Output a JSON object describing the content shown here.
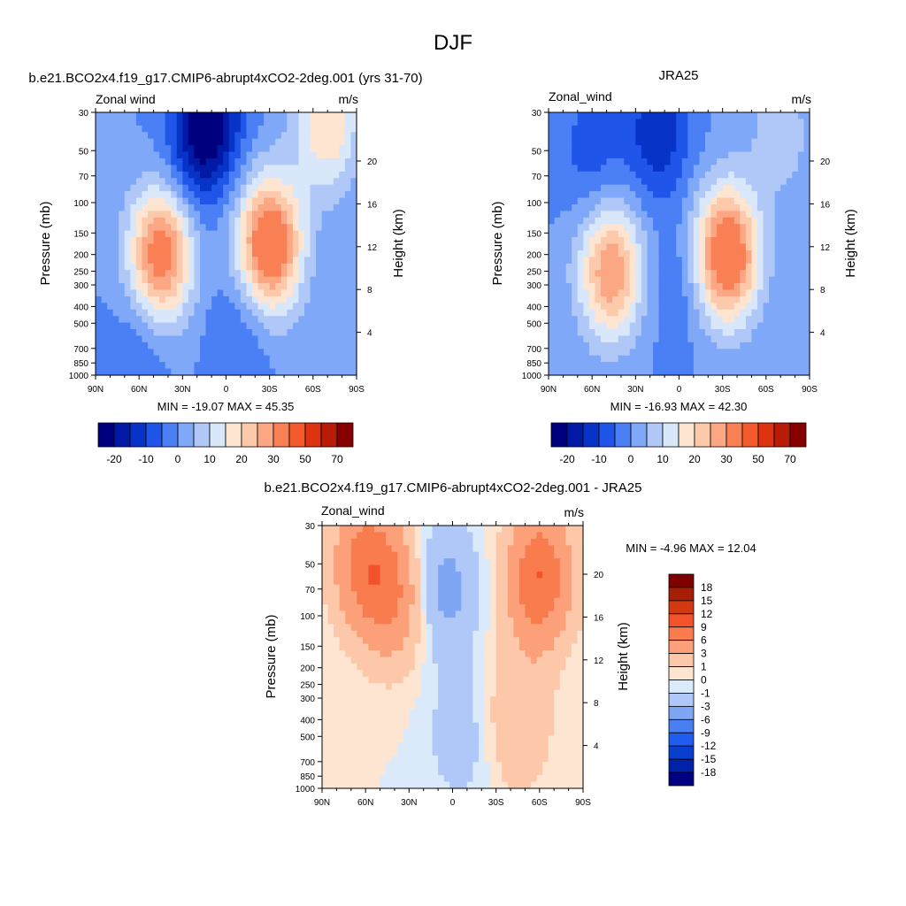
{
  "figure_title": "DJF",
  "panels": [
    {
      "title": "b.e21.BCO2x4.f19_g17.CMIP6-abrupt4xCO2-2deg.001 (yrs 31-70)",
      "left_label": "Zonal wind",
      "units_label": "m/s",
      "ylabel": "Pressure (mb)",
      "ylabel_right": "Height (km)",
      "stats": "MIN = -19.07  MAX =  45.35"
    },
    {
      "title": "JRA25",
      "left_label": "Zonal_wind",
      "units_label": "m/s",
      "ylabel": "Pressure (mb)",
      "ylabel_right": "Height (km)",
      "stats": "MIN = -16.93  MAX =  42.30"
    },
    {
      "title": "b.e21.BCO2x4.f19_g17.CMIP6-abrupt4xCO2-2deg.001 - JRA25",
      "left_label": "Zonal_wind",
      "units_label": "m/s",
      "ylabel": "Pressure (mb)",
      "ylabel_right": "Height (km)",
      "stats": "MIN =  -4.96  MAX =  12.04"
    }
  ],
  "chart_data": [
    {
      "type": "heatmap",
      "subtype": "filled-contour",
      "variable": "Zonal wind",
      "units": "m/s",
      "x_ticks": [
        "90N",
        "60N",
        "30N",
        "0",
        "30S",
        "60S",
        "90S"
      ],
      "y_ticks": [
        30,
        50,
        70,
        100,
        150,
        200,
        250,
        300,
        400,
        500,
        700,
        850,
        1000
      ],
      "y_scale": "log",
      "ylim": [
        1000,
        30
      ],
      "y2_ticks": [
        20,
        16,
        12,
        8,
        4
      ],
      "min": -19.07,
      "max": 45.35,
      "contour_levels": [
        -20,
        -15,
        -10,
        -5,
        0,
        5,
        10,
        15,
        20,
        25,
        30,
        40,
        50,
        60,
        70
      ],
      "colorbar_labels": [
        "-20",
        "-10",
        "0",
        "10",
        "20",
        "30",
        "50",
        "70"
      ],
      "features": [
        {
          "lat": -30,
          "p": 175,
          "u": 40
        },
        {
          "lat": 45,
          "p": 200,
          "u": 35
        },
        {
          "lat": -70,
          "p": 35,
          "u": 20
        },
        {
          "lat": 10,
          "p": 30,
          "u": -18
        },
        {
          "lat": 20,
          "p": 50,
          "u": -12
        },
        {
          "lat": -10,
          "p": 500,
          "u": -6
        },
        {
          "lat": 60,
          "p": 700,
          "u": -5
        }
      ]
    },
    {
      "type": "heatmap",
      "subtype": "filled-contour",
      "variable": "Zonal_wind",
      "units": "m/s",
      "x_ticks": [
        "90N",
        "60N",
        "30N",
        "0",
        "30S",
        "60S",
        "90S"
      ],
      "y_ticks": [
        30,
        50,
        70,
        100,
        150,
        200,
        250,
        300,
        400,
        500,
        700,
        850,
        1000
      ],
      "y_scale": "log",
      "ylim": [
        1000,
        30
      ],
      "y2_ticks": [
        20,
        16,
        12,
        8,
        4
      ],
      "min": -16.93,
      "max": 42.3,
      "contour_levels": [
        -20,
        -15,
        -10,
        -5,
        0,
        5,
        10,
        15,
        20,
        25,
        30,
        40,
        50,
        60,
        70
      ],
      "colorbar_labels": [
        "-20",
        "-10",
        "0",
        "10",
        "20",
        "30",
        "50",
        "70"
      ],
      "features": [
        {
          "lat": -33,
          "p": 200,
          "u": 40
        },
        {
          "lat": 47,
          "p": 250,
          "u": 30
        },
        {
          "lat": -70,
          "p": 40,
          "u": 8
        },
        {
          "lat": 15,
          "p": 40,
          "u": -14
        },
        {
          "lat": 60,
          "p": 50,
          "u": -8
        },
        {
          "lat": 0,
          "p": 300,
          "u": -5
        }
      ]
    },
    {
      "type": "heatmap",
      "subtype": "filled-contour",
      "variable": "Zonal_wind",
      "units": "m/s",
      "x_ticks": [
        "90N",
        "60N",
        "30N",
        "0",
        "30S",
        "60S",
        "90S"
      ],
      "y_ticks": [
        30,
        50,
        70,
        100,
        150,
        200,
        250,
        300,
        400,
        500,
        700,
        850,
        1000
      ],
      "y_scale": "log",
      "ylim": [
        1000,
        30
      ],
      "y2_ticks": [
        20,
        16,
        12,
        8,
        4
      ],
      "min": -4.96,
      "max": 12.04,
      "contour_levels": [
        -18,
        -15,
        -12,
        -9,
        -6,
        -3,
        -1,
        0,
        1,
        3,
        6,
        9,
        12,
        15,
        18
      ],
      "colorbar_labels": [
        "18",
        "15",
        "12",
        "9",
        "6",
        "3",
        "1",
        "0",
        "-1",
        "-3",
        "-6",
        "-9",
        "-12",
        "-15",
        "-18"
      ],
      "features": [
        {
          "lat": -60,
          "p": 60,
          "u": 9
        },
        {
          "lat": 60,
          "p": 50,
          "u": 7
        },
        {
          "lat": 40,
          "p": 80,
          "u": 5
        },
        {
          "lat": 5,
          "p": 70,
          "u": -4
        },
        {
          "lat": -5,
          "p": 500,
          "u": -2
        },
        {
          "lat": -45,
          "p": 400,
          "u": 3
        }
      ]
    }
  ],
  "colors": {
    "scale_main": [
      "#00007f",
      "#001aa6",
      "#0733c7",
      "#1f55e8",
      "#4a7ff5",
      "#7fa8f8",
      "#b0c8f8",
      "#d9e7fa",
      "#fde5d2",
      "#fdc9ab",
      "#fba784",
      "#f97f55",
      "#f55a2c",
      "#dd3311",
      "#b81c07",
      "#870000"
    ],
    "scale_diff": [
      "#000080",
      "#0022a8",
      "#0a3fce",
      "#1f5cef",
      "#4a7ff2",
      "#7ea6f4",
      "#b0c8f8",
      "#daeafb",
      "#fde5d2",
      "#fdc8aa",
      "#fca07a",
      "#f97c4f",
      "#f2532b",
      "#d13a10",
      "#a51e05",
      "#7f0000"
    ]
  }
}
